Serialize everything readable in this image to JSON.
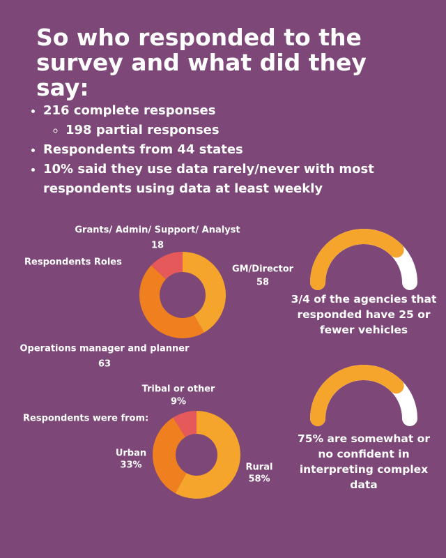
{
  "header": {
    "title": "So who responded to the survey and what did they say:"
  },
  "bullets": [
    {
      "text": "216 complete responses",
      "sub": [
        "198 partial responses"
      ]
    },
    {
      "text": "Respondents from 44 states"
    },
    {
      "text": "10% said they use data rarely/never with most respondents using data at least weekly"
    }
  ],
  "chart_data": [
    {
      "type": "pie",
      "title": "Respondents Roles",
      "categories": [
        "GM/Director",
        "Operations manager and planner",
        "Grants/ Admin/ Support/ Analyst"
      ],
      "values": [
        58,
        63,
        18
      ],
      "colors": [
        "#f5a52b",
        "#f0801f",
        "#e6595a"
      ]
    },
    {
      "type": "pie",
      "title": "Respondents were from:",
      "categories": [
        "Rural",
        "Urban",
        "Tribal or other"
      ],
      "values": [
        58,
        33,
        9
      ],
      "value_labels": [
        "58%",
        "33%",
        "9%"
      ],
      "colors": [
        "#f5a52b",
        "#f0801f",
        "#e6595a"
      ]
    },
    {
      "type": "gauge",
      "value": 75,
      "ylim": [
        0,
        100
      ],
      "color": "#f5a52b",
      "caption": "3/4 of the agencies that responded have 25 or fewer vehicles"
    },
    {
      "type": "gauge",
      "value": 75,
      "ylim": [
        0,
        100
      ],
      "color": "#f5a52b",
      "caption": "75% are somewhat or no confident in interpreting complex data"
    }
  ]
}
